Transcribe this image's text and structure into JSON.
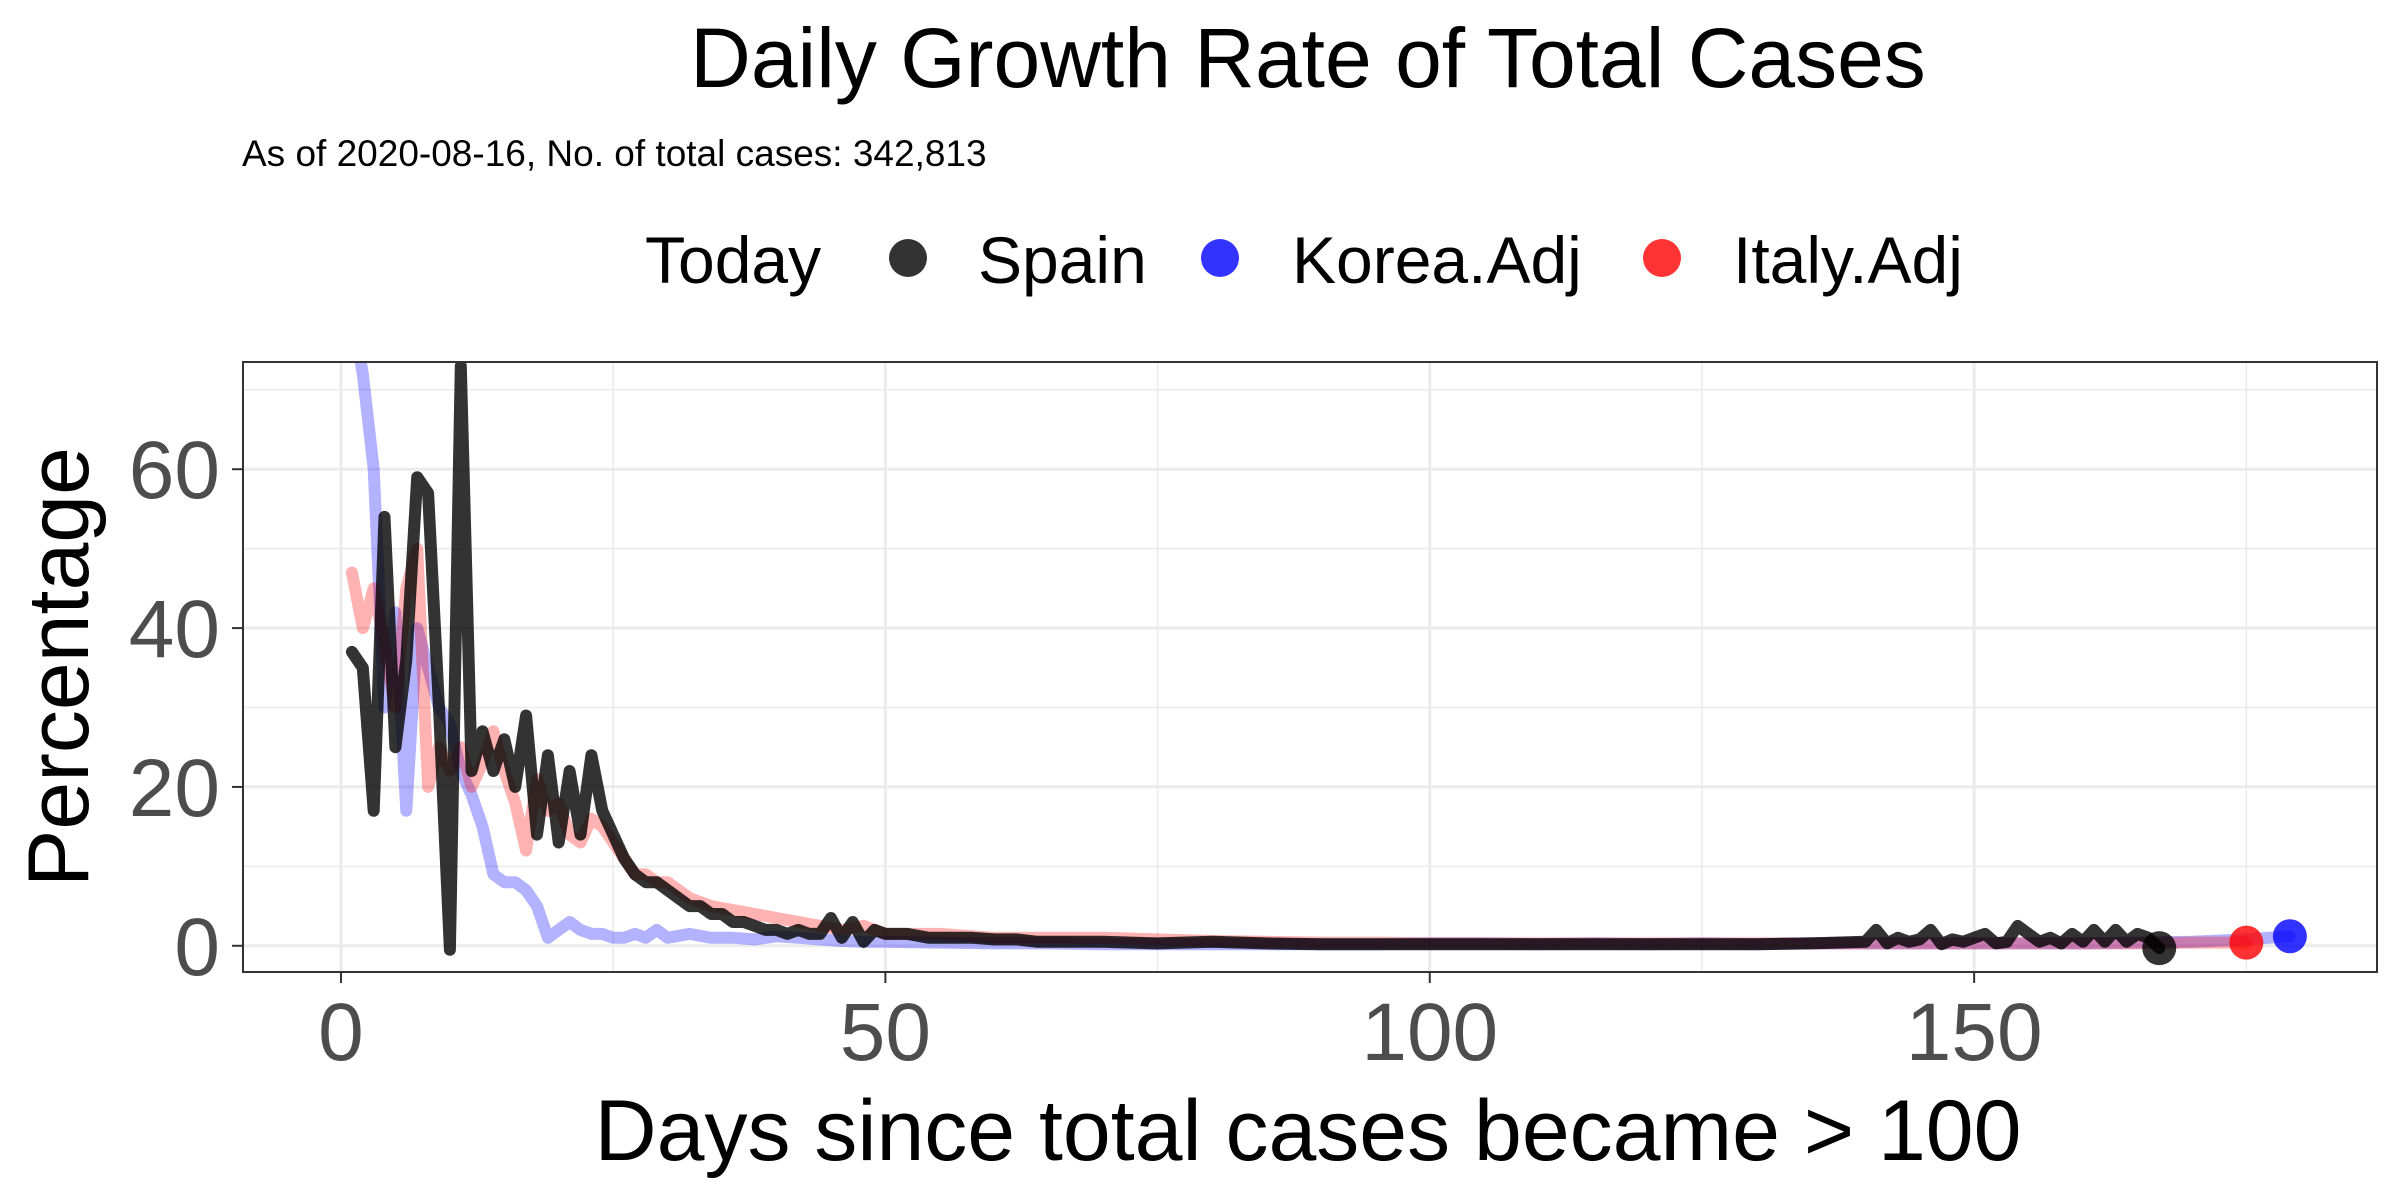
{
  "chart_data": {
    "type": "line",
    "title": "Daily Growth Rate of Total Cases",
    "subtitle": "As of 2020-08-16, No. of total cases: 342,813",
    "xlabel": "Days since total cases became > 100",
    "ylabel": "Percentage",
    "xlim": [
      -9,
      187
    ],
    "ylim": [
      -3.3,
      73.5
    ],
    "x_ticks": [
      0,
      50,
      100,
      150
    ],
    "y_ticks": [
      0,
      20,
      40,
      60
    ],
    "grid": true,
    "legend": {
      "title": "Today",
      "position": "top",
      "entries": [
        "Spain",
        "Korea.Adj",
        "Italy.Adj"
      ]
    },
    "series": [
      {
        "name": "Korea.Adj",
        "color": "#0000ff",
        "line_opacity": 0.3,
        "endpoint": [
          179,
          1.2
        ],
        "x": [
          1,
          2,
          3,
          4,
          5,
          6,
          7,
          8,
          9,
          10,
          11,
          12,
          13,
          14,
          15,
          16,
          17,
          18,
          19,
          20,
          21,
          22,
          23,
          24,
          25,
          26,
          27,
          28,
          29,
          30,
          32,
          34,
          36,
          38,
          40,
          42,
          44,
          46,
          48,
          50,
          55,
          60,
          65,
          70,
          75,
          80,
          85,
          90,
          95,
          100,
          105,
          110,
          115,
          120,
          125,
          130,
          135,
          140,
          145,
          150,
          155,
          160,
          165,
          170,
          175,
          179
        ],
        "values": [
          80,
          72,
          60,
          30,
          42,
          17,
          40,
          35,
          30,
          28,
          22,
          19,
          15,
          9,
          8,
          8,
          7,
          5,
          1,
          2,
          3,
          2,
          1.5,
          1.5,
          1,
          1,
          1.5,
          1,
          2,
          1,
          1.5,
          1,
          1,
          0.8,
          1.2,
          1,
          0.8,
          0.6,
          0.5,
          0.5,
          0.4,
          0.3,
          0.3,
          0.2,
          0.2,
          0.2,
          0.2,
          0.2,
          0.2,
          0.3,
          0.3,
          0.2,
          0.3,
          0.2,
          0.3,
          0.2,
          0.3,
          0.3,
          0.3,
          0.3,
          0.3,
          0.3,
          0.4,
          0.5,
          0.8,
          1.2
        ]
      },
      {
        "name": "Italy.Adj",
        "color": "#ff0000",
        "line_opacity": 0.3,
        "endpoint": [
          175,
          0.4
        ],
        "x": [
          1,
          2,
          3,
          4,
          5,
          6,
          7,
          8,
          9,
          10,
          11,
          12,
          13,
          14,
          15,
          16,
          17,
          18,
          19,
          20,
          21,
          22,
          23,
          24,
          25,
          26,
          27,
          28,
          29,
          30,
          32,
          34,
          36,
          38,
          40,
          42,
          44,
          46,
          48,
          50,
          55,
          60,
          65,
          70,
          75,
          80,
          85,
          90,
          95,
          100,
          105,
          110,
          115,
          120,
          125,
          130,
          135,
          140,
          145,
          150,
          155,
          160,
          165,
          170,
          175
        ],
        "values": [
          47,
          40,
          45,
          38,
          30,
          45,
          50,
          20,
          25,
          22,
          25,
          20,
          23,
          27,
          22,
          18,
          12,
          21,
          17,
          18,
          14,
          13,
          16,
          15,
          13,
          11,
          9,
          9,
          8,
          8,
          6,
          5,
          4.5,
          4,
          3.5,
          3,
          2.5,
          2,
          2.5,
          1.5,
          1.5,
          1,
          1,
          1,
          0.8,
          0.6,
          0.5,
          0.4,
          0.4,
          0.3,
          0.3,
          0.3,
          0.3,
          0.3,
          0.3,
          0.3,
          0.3,
          0.3,
          0.3,
          0.3,
          0.3,
          0.3,
          0.3,
          0.4,
          0.4
        ]
      },
      {
        "name": "Spain",
        "color": "#000000",
        "line_opacity": 0.8,
        "endpoint": [
          167,
          -0.3
        ],
        "x": [
          1,
          2,
          3,
          4,
          5,
          6,
          7,
          8,
          9,
          10,
          11,
          12,
          13,
          14,
          15,
          16,
          17,
          18,
          19,
          20,
          21,
          22,
          23,
          24,
          25,
          26,
          27,
          28,
          29,
          30,
          31,
          32,
          33,
          34,
          35,
          36,
          37,
          38,
          39,
          40,
          41,
          42,
          43,
          44,
          45,
          46,
          47,
          48,
          49,
          50,
          52,
          54,
          56,
          58,
          60,
          62,
          64,
          66,
          68,
          70,
          75,
          80,
          85,
          90,
          95,
          100,
          105,
          110,
          115,
          120,
          125,
          130,
          135,
          140,
          141,
          142,
          143,
          144,
          145,
          146,
          147,
          148,
          149,
          150,
          151,
          152,
          153,
          154,
          155,
          156,
          157,
          158,
          159,
          160,
          161,
          162,
          163,
          164,
          165,
          166,
          167
        ],
        "values": [
          37,
          35,
          17,
          54,
          25,
          36,
          59,
          57,
          30,
          -0.5,
          73,
          22,
          27,
          22,
          26,
          20,
          29,
          14,
          24,
          13,
          22,
          14,
          24,
          17,
          14,
          11,
          9,
          8,
          8,
          7,
          6,
          5,
          5,
          4,
          4,
          3,
          3,
          2.5,
          2,
          2,
          1.5,
          2,
          1.5,
          1.5,
          3.5,
          1,
          3,
          0.5,
          2,
          1.5,
          1.5,
          1,
          1,
          1,
          0.8,
          0.8,
          0.5,
          0.5,
          0.5,
          0.5,
          0.3,
          0.5,
          0.3,
          0.2,
          0.2,
          0.2,
          0.2,
          0.2,
          0.2,
          0.2,
          0.2,
          0.2,
          0.3,
          0.5,
          2,
          0.3,
          1,
          0.5,
          0.8,
          2,
          0.2,
          0.8,
          0.5,
          1,
          1.5,
          0.3,
          0.5,
          2.5,
          1.5,
          0.5,
          1,
          0.3,
          1.5,
          0.5,
          2,
          0.5,
          2,
          0.5,
          1.5,
          1,
          -0.3
        ]
      }
    ]
  }
}
